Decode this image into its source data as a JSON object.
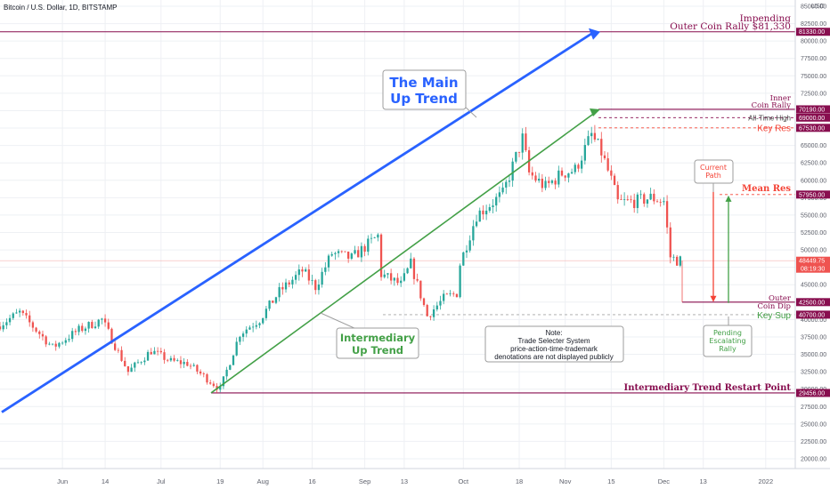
{
  "header": {
    "title": "Bitcoin / U.S. Dollar, 1D, BITSTAMP"
  },
  "colors": {
    "up": "#26a69a",
    "down": "#ef5350",
    "maroon": "#880e4f",
    "blue": "#2962ff",
    "green": "#43a047",
    "red": "#f44336",
    "grid": "#eef0f4",
    "axis": "#5d606b"
  },
  "chart_data": {
    "type": "candlestick",
    "y_axis": {
      "currency": "USD",
      "tick_values": [
        20000,
        22500,
        25000,
        27500,
        30000,
        32500,
        35000,
        37500,
        40000,
        42500,
        45000,
        47500,
        50000,
        52500,
        55000,
        57500,
        60000,
        62500,
        65000,
        67500,
        70000,
        72500,
        75000,
        77500,
        80000,
        82500,
        85000
      ],
      "tick_labels": [
        "20000.00",
        "22500.00",
        "25000.00",
        "27500.00",
        "30000.00",
        "32500.00",
        "35000.00",
        "37500.00",
        "40000.00",
        "42500.00",
        "45000.00",
        "47500.00",
        "50000.00",
        "52500.00",
        "55000.00",
        "57500.00",
        "60000.00",
        "62500.00",
        "65000.00",
        "67500.00",
        "70000.00",
        "72500.00",
        "75000.00",
        "77500.00",
        "80000.00",
        "82500.00",
        "85000.00"
      ],
      "top_label": "USD"
    },
    "ylim": [
      18500,
      85500
    ],
    "x_axis": {
      "ticks": [
        {
          "label": "Jun",
          "date": "2021-06-01"
        },
        {
          "label": "14",
          "date": "2021-06-14"
        },
        {
          "label": "Jul",
          "date": "2021-07-01"
        },
        {
          "label": "19",
          "date": "2021-07-19"
        },
        {
          "label": "Aug",
          "date": "2021-08-01"
        },
        {
          "label": "16",
          "date": "2021-08-16"
        },
        {
          "label": "Sep",
          "date": "2021-09-01"
        },
        {
          "label": "13",
          "date": "2021-09-13"
        },
        {
          "label": "Oct",
          "date": "2021-10-01"
        },
        {
          "label": "18",
          "date": "2021-10-18"
        },
        {
          "label": "Nov",
          "date": "2021-11-01"
        },
        {
          "label": "15",
          "date": "2021-11-15"
        },
        {
          "label": "Dec",
          "date": "2021-12-01"
        },
        {
          "label": "13",
          "date": "2021-12-13"
        },
        {
          "label": "2022",
          "date": "2022-01-01"
        }
      ],
      "range": [
        "2021-05-13",
        "2022-01-10"
      ]
    },
    "price_anchors": [
      {
        "date": "2021-05-13",
        "price": 39000
      },
      {
        "date": "2021-05-20",
        "price": 41000
      },
      {
        "date": "2021-05-30",
        "price": 36000
      },
      {
        "date": "2021-06-07",
        "price": 38500
      },
      {
        "date": "2021-06-14",
        "price": 40000
      },
      {
        "date": "2021-06-22",
        "price": 32500
      },
      {
        "date": "2021-06-29",
        "price": 35500
      },
      {
        "date": "2021-07-05",
        "price": 34000
      },
      {
        "date": "2021-07-10",
        "price": 33700
      },
      {
        "date": "2021-07-20",
        "price": 30000
      },
      {
        "date": "2021-07-26",
        "price": 38000
      },
      {
        "date": "2021-08-01",
        "price": 40000
      },
      {
        "date": "2021-08-07",
        "price": 44000
      },
      {
        "date": "2021-08-14",
        "price": 47000
      },
      {
        "date": "2021-08-18",
        "price": 44700
      },
      {
        "date": "2021-08-23",
        "price": 49500
      },
      {
        "date": "2021-08-29",
        "price": 48800
      },
      {
        "date": "2021-09-06",
        "price": 52000
      },
      {
        "date": "2021-09-07",
        "price": 46500
      },
      {
        "date": "2021-09-13",
        "price": 45000
      },
      {
        "date": "2021-09-16",
        "price": 48000
      },
      {
        "date": "2021-09-21",
        "price": 40500
      },
      {
        "date": "2021-09-26",
        "price": 43000
      },
      {
        "date": "2021-09-30",
        "price": 43800
      },
      {
        "date": "2021-10-01",
        "price": 48000
      },
      {
        "date": "2021-10-06",
        "price": 55000
      },
      {
        "date": "2021-10-14",
        "price": 58000
      },
      {
        "date": "2021-10-20",
        "price": 66000
      },
      {
        "date": "2021-10-22",
        "price": 61000
      },
      {
        "date": "2021-10-27",
        "price": 59000
      },
      {
        "date": "2021-11-01",
        "price": 61000
      },
      {
        "date": "2021-11-05",
        "price": 61500
      },
      {
        "date": "2021-11-10",
        "price": 66500
      },
      {
        "date": "2021-11-13",
        "price": 64000
      },
      {
        "date": "2021-11-16",
        "price": 60000
      },
      {
        "date": "2021-11-18",
        "price": 56800
      },
      {
        "date": "2021-11-24",
        "price": 57000
      },
      {
        "date": "2021-11-28",
        "price": 57500
      },
      {
        "date": "2021-12-02",
        "price": 57000
      },
      {
        "date": "2021-12-04",
        "price": 49000
      },
      {
        "date": "2021-12-06",
        "price": 48500
      }
    ],
    "levels": [
      {
        "label": "81330.00",
        "value": 81330,
        "color": "#880e4f",
        "style": "solid"
      },
      {
        "label": "70190.00",
        "value": 70190,
        "color": "#880e4f",
        "style": "solid"
      },
      {
        "label": "69000.00",
        "value": 69000,
        "color": "#880e4f",
        "style": "dashed"
      },
      {
        "label": "67530.00",
        "value": 67530,
        "color": "#f44336",
        "style": "dashed"
      },
      {
        "label": "57950.00",
        "value": 57950,
        "color": "#f44336",
        "style": "dashed"
      },
      {
        "label": "48449.75",
        "value": 48449.75,
        "color": "#ef5350",
        "style": "thin",
        "sub": "08:19:30"
      },
      {
        "label": "42500.00",
        "value": 42500,
        "color": "#880e4f",
        "style": "solid"
      },
      {
        "label": "40700.00",
        "value": 40700,
        "color": "#43a047",
        "style": "dashed"
      },
      {
        "label": "29456.00",
        "value": 29456,
        "color": "#880e4f",
        "style": "solid"
      }
    ],
    "annotations": {
      "impending": [
        "Impending",
        "Outer Coin Rally $81,330"
      ],
      "inner": [
        "Inner",
        "Coin Rally"
      ],
      "ath": "All-Time High",
      "key_res": "Key Res",
      "mean_res": "Mean Res",
      "outer_dip": [
        "Outer",
        "Coin Dip"
      ],
      "key_sup": "Key Sup",
      "restart": "Intermediary Trend Restart Point",
      "main_trend": [
        "The Main",
        "Up Trend"
      ],
      "inter_trend": [
        "Intermediary",
        "Up Trend"
      ],
      "current_path": [
        "Current",
        "Path"
      ],
      "pending": [
        "Pending",
        "Escalating",
        "Rally"
      ],
      "note": [
        "Note:",
        "Trade Selecter System",
        "price-action-time-trademark",
        "denotations are not displayed publicly"
      ]
    }
  }
}
